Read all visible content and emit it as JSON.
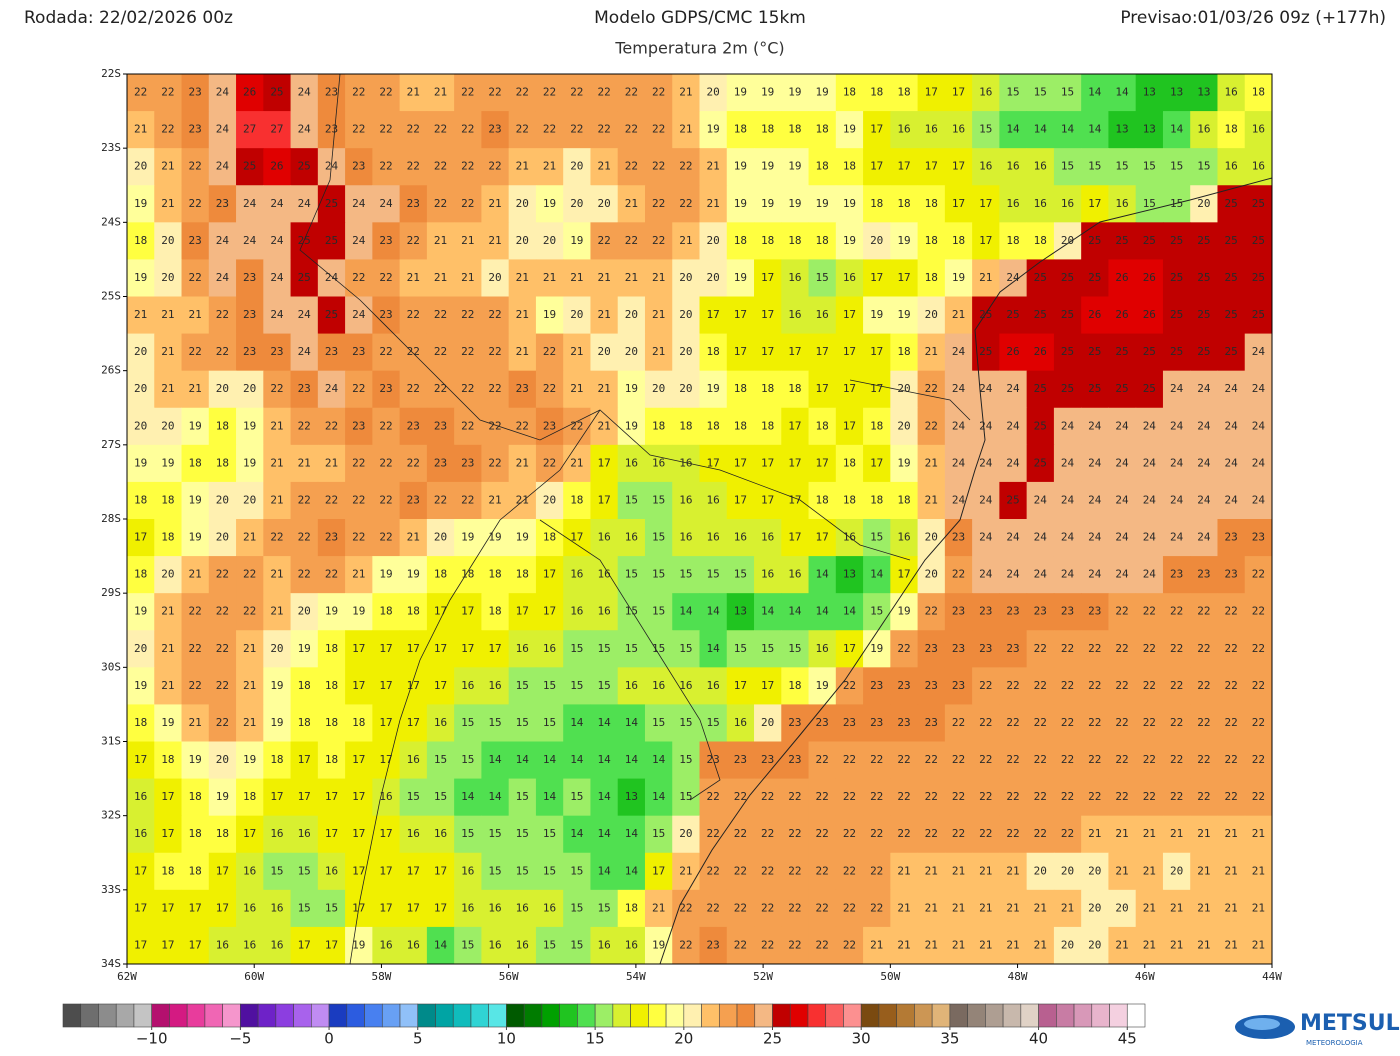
{
  "header": {
    "run": "Rodada: 22/02/2026 00z",
    "model": "Modelo GDPS/CMC 15km",
    "forecast": "Previsao:01/03/26 09z (+177h)",
    "subtitle": "Temperatura 2m (°C)"
  },
  "map": {
    "lonlim": [
      -62,
      -44
    ],
    "latlim": [
      -34,
      -22
    ],
    "lat_ticks": [
      {
        "value": -22,
        "label": "22S"
      },
      {
        "value": -23,
        "label": "23S"
      },
      {
        "value": -24,
        "label": "24S"
      },
      {
        "value": -25,
        "label": "25S"
      },
      {
        "value": -26,
        "label": "26S"
      },
      {
        "value": -27,
        "label": "27S"
      },
      {
        "value": -28,
        "label": "28S"
      },
      {
        "value": -29,
        "label": "29S"
      },
      {
        "value": -30,
        "label": "30S"
      },
      {
        "value": -31,
        "label": "31S"
      },
      {
        "value": -32,
        "label": "32S"
      },
      {
        "value": -33,
        "label": "33S"
      },
      {
        "value": -34,
        "label": "34S"
      }
    ],
    "lon_ticks": [
      {
        "value": -62,
        "label": "62W"
      },
      {
        "value": -60,
        "label": "60W"
      },
      {
        "value": -58,
        "label": "58W"
      },
      {
        "value": -56,
        "label": "56W"
      },
      {
        "value": -54,
        "label": "54W"
      },
      {
        "value": -52,
        "label": "52W"
      },
      {
        "value": -50,
        "label": "50W"
      },
      {
        "value": -48,
        "label": "48W"
      },
      {
        "value": -46,
        "label": "46W"
      },
      {
        "value": -44,
        "label": "44W"
      }
    ],
    "grid": [
      [
        22,
        22,
        23,
        24,
        26,
        25,
        24,
        23,
        22,
        22,
        21,
        21,
        22,
        22,
        22,
        22,
        22,
        22,
        22,
        22,
        21,
        20,
        19,
        19,
        19,
        19,
        18,
        18,
        18,
        17,
        17,
        16,
        15,
        15,
        15,
        14,
        14,
        13,
        13,
        13,
        16,
        18
      ],
      [
        21,
        22,
        23,
        24,
        27,
        27,
        24,
        23,
        22,
        22,
        22,
        22,
        22,
        23,
        22,
        22,
        22,
        22,
        22,
        22,
        21,
        19,
        18,
        18,
        18,
        18,
        19,
        17,
        16,
        16,
        16,
        15,
        14,
        14,
        14,
        14,
        13,
        13,
        14,
        16,
        18,
        16
      ],
      [
        20,
        21,
        22,
        24,
        25,
        26,
        25,
        24,
        23,
        22,
        22,
        22,
        22,
        22,
        21,
        21,
        20,
        21,
        22,
        22,
        22,
        21,
        19,
        19,
        19,
        18,
        18,
        17,
        17,
        17,
        17,
        16,
        16,
        16,
        15,
        15,
        15,
        15,
        15,
        15,
        16,
        16
      ],
      [
        19,
        21,
        22,
        23,
        24,
        24,
        24,
        25,
        24,
        24,
        23,
        22,
        22,
        21,
        20,
        19,
        20,
        20,
        21,
        22,
        22,
        21,
        19,
        19,
        19,
        19,
        19,
        18,
        18,
        18,
        17,
        17,
        16,
        16,
        16,
        17,
        16,
        15,
        15,
        20,
        25,
        25
      ],
      [
        18,
        20,
        23,
        24,
        24,
        24,
        25,
        25,
        24,
        23,
        22,
        21,
        21,
        21,
        20,
        20,
        19,
        22,
        22,
        22,
        21,
        20,
        18,
        18,
        18,
        18,
        19,
        20,
        19,
        18,
        18,
        17,
        18,
        18,
        20,
        25,
        25,
        25,
        25,
        25,
        25,
        25
      ],
      [
        19,
        20,
        22,
        24,
        23,
        24,
        25,
        24,
        22,
        22,
        21,
        21,
        21,
        20,
        21,
        21,
        21,
        21,
        21,
        21,
        20,
        20,
        19,
        17,
        16,
        15,
        16,
        17,
        17,
        18,
        19,
        21,
        24,
        25,
        25,
        25,
        26,
        26,
        25,
        25,
        25,
        25
      ],
      [
        21,
        21,
        21,
        22,
        23,
        24,
        24,
        25,
        24,
        23,
        22,
        22,
        22,
        22,
        21,
        19,
        20,
        21,
        20,
        21,
        20,
        17,
        17,
        17,
        16,
        16,
        17,
        19,
        19,
        20,
        21,
        25,
        25,
        25,
        25,
        26,
        26,
        26,
        25,
        25,
        25,
        25
      ],
      [
        20,
        21,
        22,
        22,
        23,
        23,
        24,
        23,
        23,
        22,
        22,
        22,
        22,
        22,
        21,
        22,
        21,
        20,
        20,
        21,
        20,
        18,
        17,
        17,
        17,
        17,
        17,
        17,
        18,
        21,
        24,
        25,
        26,
        26,
        25,
        25,
        25,
        25,
        25,
        25,
        25,
        24
      ],
      [
        20,
        21,
        21,
        20,
        20,
        22,
        23,
        24,
        22,
        23,
        22,
        22,
        22,
        22,
        23,
        22,
        21,
        21,
        19,
        20,
        20,
        19,
        18,
        18,
        18,
        17,
        17,
        17,
        20,
        22,
        24,
        24,
        24,
        25,
        25,
        25,
        25,
        25,
        24,
        24,
        24,
        24
      ],
      [
        20,
        20,
        19,
        18,
        19,
        21,
        22,
        22,
        23,
        22,
        23,
        23,
        22,
        22,
        22,
        23,
        22,
        21,
        19,
        18,
        18,
        18,
        18,
        18,
        17,
        18,
        17,
        18,
        20,
        22,
        24,
        24,
        24,
        25,
        24,
        24,
        24,
        24,
        24,
        24,
        24,
        24
      ],
      [
        19,
        19,
        18,
        18,
        19,
        21,
        21,
        21,
        22,
        22,
        22,
        23,
        23,
        22,
        21,
        22,
        21,
        17,
        16,
        16,
        16,
        17,
        17,
        17,
        17,
        17,
        18,
        17,
        19,
        21,
        24,
        24,
        24,
        25,
        24,
        24,
        24,
        24,
        24,
        24,
        24,
        24
      ],
      [
        18,
        18,
        19,
        20,
        20,
        21,
        22,
        22,
        22,
        22,
        23,
        22,
        22,
        21,
        21,
        20,
        18,
        17,
        15,
        15,
        16,
        16,
        17,
        17,
        17,
        18,
        18,
        18,
        18,
        21,
        24,
        24,
        25,
        24,
        24,
        24,
        24,
        24,
        24,
        24,
        24,
        24
      ],
      [
        17,
        18,
        19,
        20,
        21,
        22,
        22,
        23,
        22,
        22,
        21,
        20,
        19,
        19,
        19,
        18,
        17,
        16,
        16,
        15,
        16,
        16,
        16,
        16,
        17,
        17,
        16,
        15,
        16,
        20,
        23,
        24,
        24,
        24,
        24,
        24,
        24,
        24,
        24,
        24,
        23,
        23
      ],
      [
        18,
        20,
        21,
        22,
        22,
        21,
        22,
        22,
        21,
        19,
        19,
        18,
        18,
        18,
        18,
        17,
        16,
        16,
        15,
        15,
        15,
        15,
        15,
        16,
        16,
        14,
        13,
        14,
        17,
        20,
        22,
        24,
        24,
        24,
        24,
        24,
        24,
        24,
        23,
        23,
        23,
        22
      ],
      [
        19,
        21,
        22,
        22,
        22,
        21,
        20,
        19,
        19,
        18,
        18,
        17,
        17,
        18,
        17,
        17,
        16,
        16,
        15,
        15,
        14,
        14,
        13,
        14,
        14,
        14,
        14,
        15,
        19,
        22,
        23,
        23,
        23,
        23,
        23,
        23,
        22,
        22,
        22,
        22,
        22,
        22
      ],
      [
        20,
        21,
        22,
        22,
        21,
        20,
        19,
        18,
        17,
        17,
        17,
        17,
        17,
        17,
        16,
        16,
        15,
        15,
        15,
        15,
        15,
        14,
        15,
        15,
        15,
        16,
        17,
        19,
        22,
        23,
        23,
        23,
        23,
        22,
        22,
        22,
        22,
        22,
        22,
        22,
        22,
        22
      ],
      [
        19,
        21,
        22,
        22,
        21,
        19,
        18,
        18,
        17,
        17,
        17,
        17,
        16,
        16,
        15,
        15,
        15,
        15,
        16,
        16,
        16,
        16,
        17,
        17,
        18,
        19,
        22,
        23,
        23,
        23,
        23,
        22,
        22,
        22,
        22,
        22,
        22,
        22,
        22,
        22,
        22,
        22
      ],
      [
        18,
        19,
        21,
        22,
        21,
        19,
        18,
        18,
        18,
        17,
        17,
        16,
        15,
        15,
        15,
        15,
        14,
        14,
        14,
        15,
        15,
        15,
        16,
        20,
        23,
        23,
        23,
        23,
        23,
        23,
        22,
        22,
        22,
        22,
        22,
        22,
        22,
        22,
        22,
        22,
        22,
        22
      ],
      [
        17,
        18,
        19,
        20,
        19,
        18,
        17,
        18,
        17,
        17,
        16,
        15,
        15,
        14,
        14,
        14,
        14,
        14,
        14,
        14,
        15,
        23,
        23,
        23,
        23,
        22,
        22,
        22,
        22,
        22,
        22,
        22,
        22,
        22,
        22,
        22,
        22,
        22,
        22,
        22,
        22,
        22
      ],
      [
        16,
        17,
        18,
        19,
        18,
        17,
        17,
        17,
        17,
        16,
        15,
        15,
        14,
        14,
        15,
        14,
        15,
        14,
        13,
        14,
        15,
        22,
        22,
        22,
        22,
        22,
        22,
        22,
        22,
        22,
        22,
        22,
        22,
        22,
        22,
        22,
        22,
        22,
        22,
        22,
        22,
        22
      ],
      [
        16,
        17,
        18,
        18,
        17,
        16,
        16,
        17,
        17,
        17,
        16,
        16,
        15,
        15,
        15,
        15,
        14,
        14,
        14,
        15,
        20,
        22,
        22,
        22,
        22,
        22,
        22,
        22,
        22,
        22,
        22,
        22,
        22,
        22,
        22,
        21,
        21,
        21,
        21,
        21,
        21,
        21
      ],
      [
        17,
        18,
        18,
        17,
        16,
        15,
        15,
        16,
        17,
        17,
        17,
        17,
        16,
        15,
        15,
        15,
        15,
        14,
        14,
        17,
        21,
        22,
        22,
        22,
        22,
        22,
        22,
        22,
        21,
        21,
        21,
        21,
        21,
        20,
        20,
        20,
        21,
        21,
        20,
        21,
        21,
        21
      ],
      [
        17,
        17,
        17,
        17,
        16,
        16,
        15,
        15,
        17,
        17,
        17,
        17,
        16,
        16,
        16,
        16,
        15,
        15,
        18,
        21,
        22,
        22,
        22,
        22,
        22,
        22,
        22,
        22,
        21,
        21,
        21,
        21,
        21,
        21,
        21,
        20,
        20,
        21,
        21,
        21,
        21,
        21
      ],
      [
        17,
        17,
        17,
        16,
        16,
        16,
        17,
        17,
        19,
        16,
        16,
        14,
        15,
        16,
        16,
        15,
        15,
        16,
        16,
        19,
        22,
        23,
        22,
        22,
        22,
        22,
        22,
        21,
        21,
        21,
        21,
        21,
        21,
        21,
        20,
        20,
        21,
        21,
        21,
        21,
        21,
        21
      ]
    ]
  },
  "colorbar": {
    "range": [
      -15,
      46
    ],
    "colors": [
      "#4d4d4d",
      "#6e6e6e",
      "#8c8c8c",
      "#a8a8a8",
      "#c4c4c4",
      "#b4106e",
      "#d41a82",
      "#e83c9c",
      "#f066b4",
      "#f596cc",
      "#5010a0",
      "#6e22c8",
      "#8c3ee0",
      "#a862ec",
      "#c08cf2",
      "#1a3cc0",
      "#2c5ce0",
      "#4880f0",
      "#68a0f4",
      "#90c0f8",
      "#008a8a",
      "#00a4a4",
      "#10bcbc",
      "#30d4d4",
      "#58e6e6",
      "#005a00",
      "#007c00",
      "#00a000",
      "#20c420",
      "#50e050",
      "#9cee66",
      "#d8f030",
      "#f0f000",
      "#ffff40",
      "#ffff9a",
      "#fff0b0",
      "#ffc068",
      "#f5a050",
      "#ee8a3c",
      "#f4b884",
      "#c00000",
      "#e00000",
      "#f83030",
      "#fa6060",
      "#fc9090",
      "#7a4a10",
      "#985e1c",
      "#b47a34",
      "#cc9654",
      "#e0b478",
      "#7a6a60",
      "#948478",
      "#ae9e92",
      "#c8b8ac",
      "#e0d2c6",
      "#b86090",
      "#c87ca4",
      "#d898b8",
      "#e8b4cc",
      "#f4d0e0",
      "#ffffff"
    ],
    "ticks": [
      {
        "value": -10,
        "label": "−10"
      },
      {
        "value": -5,
        "label": "−5"
      },
      0,
      5,
      10,
      15,
      20,
      25,
      30,
      35,
      40,
      45
    ]
  },
  "logo": {
    "name": "METSUL",
    "tagline": "METEOROLOGIA"
  }
}
